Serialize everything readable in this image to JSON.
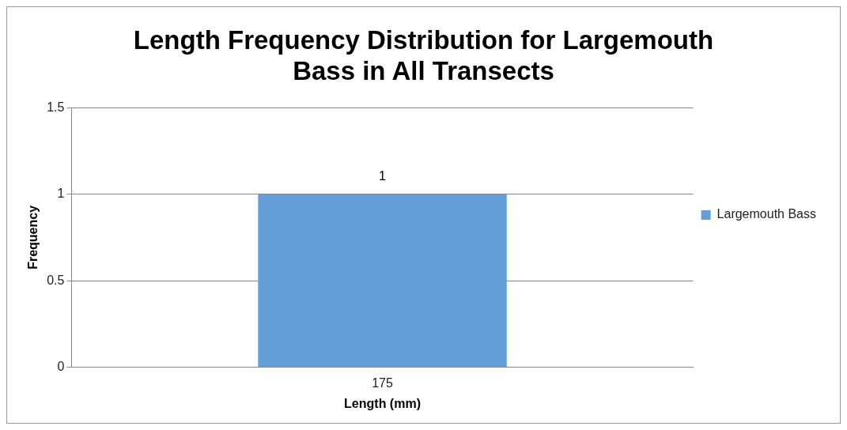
{
  "chart_data": {
    "type": "bar",
    "title": "Length Frequency Distribution for Largemouth Bass in All Transects",
    "xlabel": "Length (mm)",
    "ylabel": "Frequency",
    "categories": [
      "175"
    ],
    "series": [
      {
        "name": "Largemouth Bass",
        "color": "#659fd9",
        "values": [
          1
        ]
      }
    ],
    "ylim": [
      0,
      1.5
    ],
    "yticks": [
      0,
      0.5,
      1,
      1.5
    ],
    "grid": "y",
    "legend": "right",
    "data_labels": true
  }
}
